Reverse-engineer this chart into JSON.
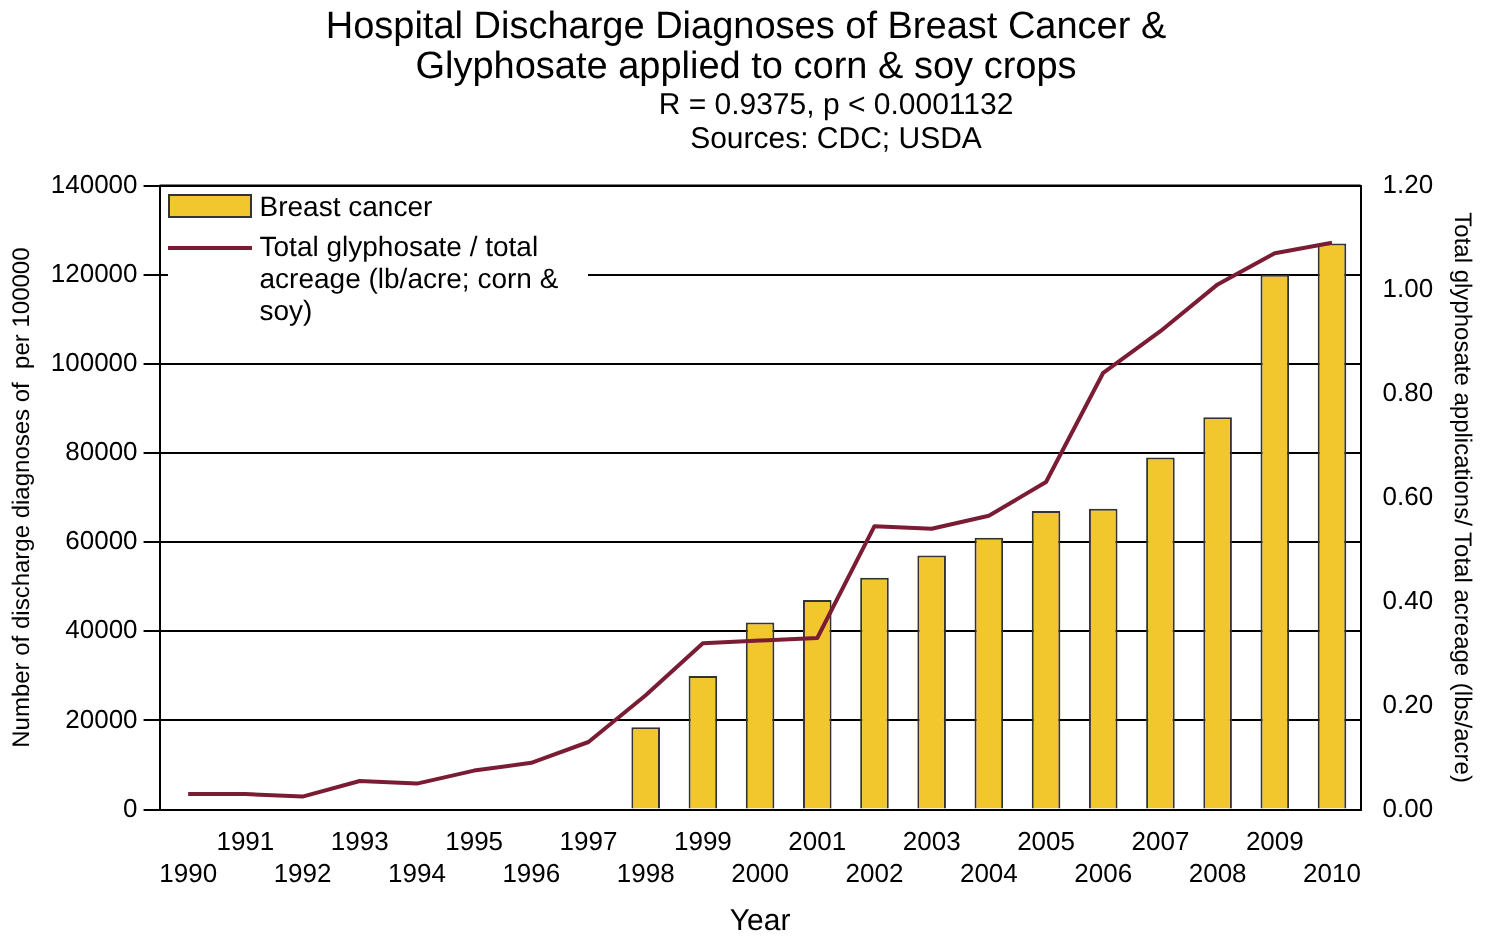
{
  "chart_data": {
    "type": "bar",
    "title": "Hospital Discharge Diagnoses of Breast Cancer & Glyphosate applied to corn & soy crops",
    "subtitle": "R = 0.9375, p < 0.0001132",
    "annotations": [
      "Sources: CDC; USDA"
    ],
    "xlabel": "Year",
    "ylabel": "Number of discharge diagnoses of  per 100000",
    "y2label": "Total glyphosate applications/ Total acreage (lbs/acre)",
    "categories": [
      "1990",
      "1991",
      "1992",
      "1993",
      "1994",
      "1995",
      "1996",
      "1997",
      "1998",
      "1999",
      "2000",
      "2001",
      "2002",
      "2003",
      "2004",
      "2005",
      "2006",
      "2007",
      "2008",
      "2009",
      "2010"
    ],
    "series": [
      {
        "name": "Breast cancer",
        "color": "#f2c72e",
        "values": [
          null,
          null,
          null,
          null,
          null,
          null,
          null,
          null,
          18500,
          30000,
          42000,
          47000,
          52000,
          57000,
          61000,
          67000,
          67500,
          79000,
          88000,
          120000,
          127000
        ]
      },
      {
        "name": "Total glyphosate / total acreage (lb/acre; corn & soy)",
        "type": "line",
        "axis": "y2",
        "color": "#7b1c35",
        "values": [
          0.03,
          0.03,
          0.025,
          0.055,
          0.05,
          0.075,
          0.09,
          0.13,
          0.22,
          0.32,
          0.325,
          0.33,
          0.545,
          0.54,
          0.565,
          0.63,
          0.84,
          0.92,
          1.01,
          1.07,
          1.09
        ]
      }
    ],
    "ylim": [
      0,
      140000
    ],
    "yticks": [
      0,
      20000,
      40000,
      60000,
      80000,
      100000,
      120000,
      140000
    ],
    "y2lim": [
      0,
      1.2
    ],
    "y2ticks": [
      {
        "value": 0,
        "label": "0.00"
      },
      {
        "value": 0.2,
        "label": "0.20"
      },
      {
        "value": 0.4,
        "label": "0.40"
      },
      {
        "value": 0.6,
        "label": "0.60"
      },
      {
        "value": 0.8,
        "label": "0.80"
      },
      {
        "value": 1,
        "label": "1.00"
      },
      {
        "value": 1.2,
        "label": "1.20"
      }
    ],
    "grid": "y",
    "legend": "top left",
    "marker": "none",
    "line_style": "solid"
  }
}
